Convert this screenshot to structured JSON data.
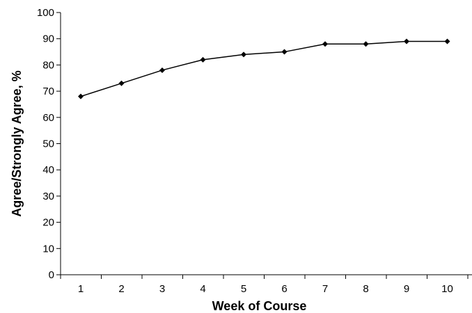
{
  "chart_data": {
    "type": "line",
    "title": "",
    "xlabel": "Week of Course",
    "ylabel": "Agree/Strongly Agree, %",
    "x": [
      1,
      2,
      3,
      4,
      5,
      6,
      7,
      8,
      9,
      10
    ],
    "x_tick_labels": [
      "1",
      "2",
      "3",
      "4",
      "5",
      "6",
      "7",
      "8",
      "9",
      "10"
    ],
    "series": [
      {
        "values": [
          68,
          73,
          78,
          82,
          84,
          85,
          88,
          88,
          89,
          89
        ],
        "color": "#000000"
      }
    ],
    "ylim": [
      0,
      100
    ],
    "y_ticks": [
      0,
      10,
      20,
      30,
      40,
      50,
      60,
      70,
      80,
      90,
      100
    ],
    "y_tick_labels": [
      "0",
      "10",
      "20",
      "30",
      "40",
      "50",
      "60",
      "70",
      "80",
      "90",
      "100"
    ],
    "grid": false,
    "legend": "none"
  }
}
